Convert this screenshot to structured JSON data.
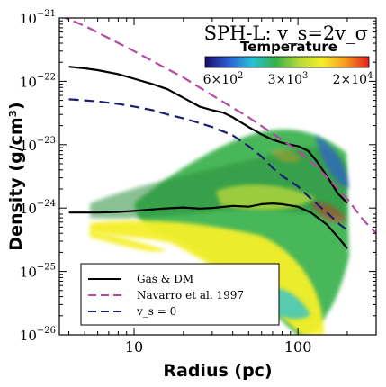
{
  "chart_data": {
    "type": "line",
    "title": "SPH-L: v_s=2v_σ",
    "xlabel": "Radius (pc)",
    "ylabel": "Density (g/cm³)",
    "xscale": "log",
    "yscale": "log",
    "xlim": [
      3.5,
      300
    ],
    "ylim": [
      1e-26,
      1e-21
    ],
    "grid": false,
    "x_ticks": [
      {
        "value": 10,
        "label": "10"
      },
      {
        "value": 100,
        "label": "100"
      }
    ],
    "y_ticks": [
      {
        "value": 1e-21,
        "mant": "10",
        "exp": "−21"
      },
      {
        "value": 1e-22,
        "mant": "10",
        "exp": "−22"
      },
      {
        "value": 1e-23,
        "mant": "10",
        "exp": "−23"
      },
      {
        "value": 1e-24,
        "mant": "10",
        "exp": "−24"
      },
      {
        "value": 1e-25,
        "mant": "10",
        "exp": "−25"
      },
      {
        "value": 1e-26,
        "mant": "10",
        "exp": "−26"
      }
    ],
    "legend": {
      "placement": "lower-left",
      "entries": [
        "Gas & DM",
        "Navarro et al. 1997",
        "v_s = 0"
      ]
    },
    "colorbar": {
      "title": "Temperature",
      "placement": "upper-right",
      "colors": [
        "#1a0b6b",
        "#2d5fd0",
        "#27c0d8",
        "#35b04a",
        "#b5d83a",
        "#f4ef2a",
        "#f79a1e",
        "#e02020"
      ],
      "ticks": [
        {
          "mant": "6×10",
          "exp": "2"
        },
        {
          "mant": "3×10",
          "exp": "3"
        },
        {
          "mant": "2×10",
          "exp": "4"
        }
      ]
    },
    "series": [
      {
        "name": "Gas & DM",
        "style": "solid",
        "color": "#000000",
        "points": [
          [
            4,
            1.7e-22
          ],
          [
            5,
            1.6e-22
          ],
          [
            6,
            1.5e-22
          ],
          [
            8,
            1.3e-22
          ],
          [
            10,
            1.1e-22
          ],
          [
            13,
            9e-23
          ],
          [
            16,
            7.5e-23
          ],
          [
            20,
            5.5e-23
          ],
          [
            25,
            4e-23
          ],
          [
            30,
            3.5e-23
          ],
          [
            35,
            3.2e-23
          ],
          [
            40,
            2.7e-23
          ],
          [
            50,
            1.9e-23
          ],
          [
            60,
            1.45e-23
          ],
          [
            70,
            1.2e-23
          ],
          [
            80,
            1.07e-23
          ],
          [
            90,
            1e-23
          ],
          [
            100,
            9.5e-24
          ],
          [
            115,
            8e-24
          ],
          [
            130,
            5.5e-24
          ],
          [
            150,
            3.2e-24
          ],
          [
            175,
            1.7e-24
          ],
          [
            200,
            1.2e-24
          ]
        ]
      },
      {
        "name": "",
        "style": "solid",
        "color": "#000000",
        "points": [
          [
            4,
            8.5e-25
          ],
          [
            6,
            8.5e-25
          ],
          [
            8,
            8.7e-25
          ],
          [
            10,
            9e-25
          ],
          [
            15,
            9.8e-25
          ],
          [
            20,
            1.02e-24
          ],
          [
            25,
            9.8e-25
          ],
          [
            30,
            1e-24
          ],
          [
            40,
            1.08e-24
          ],
          [
            50,
            1.05e-24
          ],
          [
            60,
            1.15e-24
          ],
          [
            70,
            1.18e-24
          ],
          [
            80,
            1.15e-24
          ],
          [
            100,
            1.05e-24
          ],
          [
            120,
            8.5e-25
          ],
          [
            150,
            5.5e-25
          ],
          [
            175,
            3.5e-25
          ],
          [
            200,
            2.3e-25
          ]
        ]
      },
      {
        "name": "Navarro et al. 1997",
        "style": "dashed",
        "color": "#b54aa4",
        "points": [
          [
            3.5,
            1.1e-21
          ],
          [
            5,
            7.5e-22
          ],
          [
            7,
            4.8e-22
          ],
          [
            10,
            3e-22
          ],
          [
            15,
            1.7e-22
          ],
          [
            20,
            1.15e-22
          ],
          [
            30,
            6e-23
          ],
          [
            50,
            2.7e-23
          ],
          [
            70,
            1.5e-23
          ],
          [
            100,
            8e-24
          ],
          [
            130,
            4.5e-24
          ],
          [
            170,
            2.2e-24
          ],
          [
            200,
            1.4e-24
          ],
          [
            250,
            6.5e-25
          ],
          [
            300,
            4e-25
          ]
        ]
      },
      {
        "name": "v_s = 0",
        "style": "dashed",
        "color": "#1d1f6e",
        "points": [
          [
            4,
            5.2e-23
          ],
          [
            5,
            5e-23
          ],
          [
            6,
            4.8e-23
          ],
          [
            8,
            4.4e-23
          ],
          [
            10,
            4e-23
          ],
          [
            13,
            3.5e-23
          ],
          [
            16,
            3e-23
          ],
          [
            20,
            2.6e-23
          ],
          [
            25,
            2.2e-23
          ],
          [
            30,
            1.9e-23
          ],
          [
            40,
            1.4e-23
          ],
          [
            50,
            9.5e-24
          ],
          [
            60,
            6.5e-24
          ],
          [
            70,
            4.3e-24
          ],
          [
            80,
            3.2e-24
          ],
          [
            100,
            2.2e-24
          ],
          [
            120,
            1.4e-24
          ],
          [
            150,
            8.5e-25
          ],
          [
            180,
            5.5e-25
          ],
          [
            200,
            4.5e-25
          ]
        ]
      }
    ]
  }
}
